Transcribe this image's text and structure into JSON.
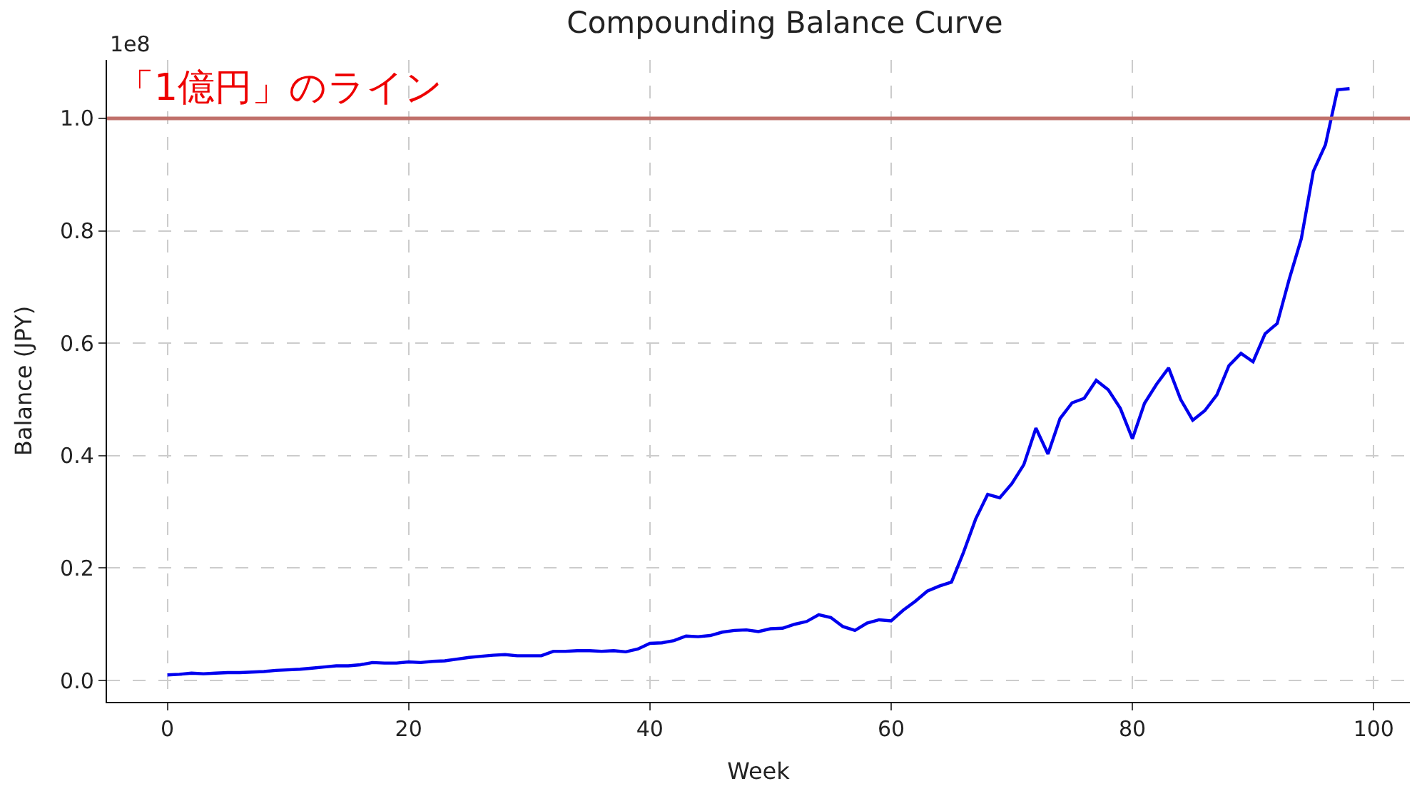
{
  "chart_data": {
    "type": "line",
    "title": "Compounding Balance Curve",
    "xlabel": "Week",
    "ylabel": "Balance (JPY)",
    "annotations": [
      "1e8"
    ],
    "x": [
      0,
      1,
      2,
      3,
      4,
      5,
      6,
      7,
      8,
      9,
      10,
      11,
      12,
      13,
      14,
      15,
      16,
      17,
      18,
      19,
      20,
      21,
      22,
      23,
      24,
      25,
      26,
      27,
      28,
      29,
      30,
      31,
      32,
      33,
      34,
      35,
      36,
      37,
      38,
      39,
      40,
      41,
      42,
      43,
      44,
      45,
      46,
      47,
      48,
      49,
      50,
      51,
      52,
      53,
      54,
      55,
      56,
      57,
      58,
      59,
      60,
      61,
      62,
      63,
      64,
      65,
      66,
      67,
      68,
      69,
      70,
      71,
      72,
      73,
      74,
      75,
      76,
      77,
      78,
      79,
      80,
      81,
      82,
      83,
      84,
      85,
      86,
      87,
      88,
      89,
      90,
      91,
      92,
      93,
      94,
      95,
      96,
      97,
      98
    ],
    "series": [
      {
        "color": "#0000ee",
        "values": [
          0.01,
          0.011,
          0.013,
          0.012,
          0.013,
          0.014,
          0.014,
          0.015,
          0.016,
          0.018,
          0.019,
          0.02,
          0.022,
          0.024,
          0.026,
          0.026,
          0.028,
          0.032,
          0.031,
          0.031,
          0.033,
          0.032,
          0.034,
          0.035,
          0.038,
          0.041,
          0.043,
          0.045,
          0.046,
          0.044,
          0.044,
          0.044,
          0.052,
          0.052,
          0.053,
          0.053,
          0.052,
          0.053,
          0.051,
          0.056,
          0.066,
          0.067,
          0.071,
          0.079,
          0.078,
          0.08,
          0.086,
          0.089,
          0.09,
          0.087,
          0.092,
          0.093,
          0.1,
          0.105,
          0.117,
          0.112,
          0.096,
          0.089,
          0.102,
          0.108,
          0.106,
          0.125,
          0.141,
          0.159,
          0.168,
          0.175,
          0.228,
          0.287,
          0.331,
          0.325,
          0.35,
          0.384,
          0.449,
          0.403,
          0.466,
          0.494,
          0.502,
          0.534,
          0.517,
          0.484,
          0.43,
          0.493,
          0.527,
          0.556,
          0.5,
          0.463,
          0.48,
          0.508,
          0.56,
          0.582,
          0.567,
          0.617,
          0.635,
          0.714,
          0.786,
          0.906,
          0.953,
          1.051,
          1.053
        ]
      }
    ],
    "xlim": [
      -5,
      103
    ],
    "xticks": [
      0,
      20,
      40,
      60,
      80,
      100
    ],
    "ylim": [
      -0.038,
      1.104
    ],
    "yticks": [
      {
        "value": 0,
        "label": "0.0"
      },
      {
        "value": 0.2,
        "label": "0.2"
      },
      {
        "value": 0.4,
        "label": "0.4"
      },
      {
        "value": 0.6,
        "label": "0.6"
      },
      {
        "value": 0.8,
        "label": "0.8"
      },
      {
        "value": 1.0,
        "label": "1.0"
      }
    ],
    "ref_lines": [
      {
        "axis": "y",
        "value": 1.0,
        "label": "「1億円」のライン",
        "color": "#c0706a"
      }
    ],
    "grid": true,
    "line_style": "solid"
  }
}
